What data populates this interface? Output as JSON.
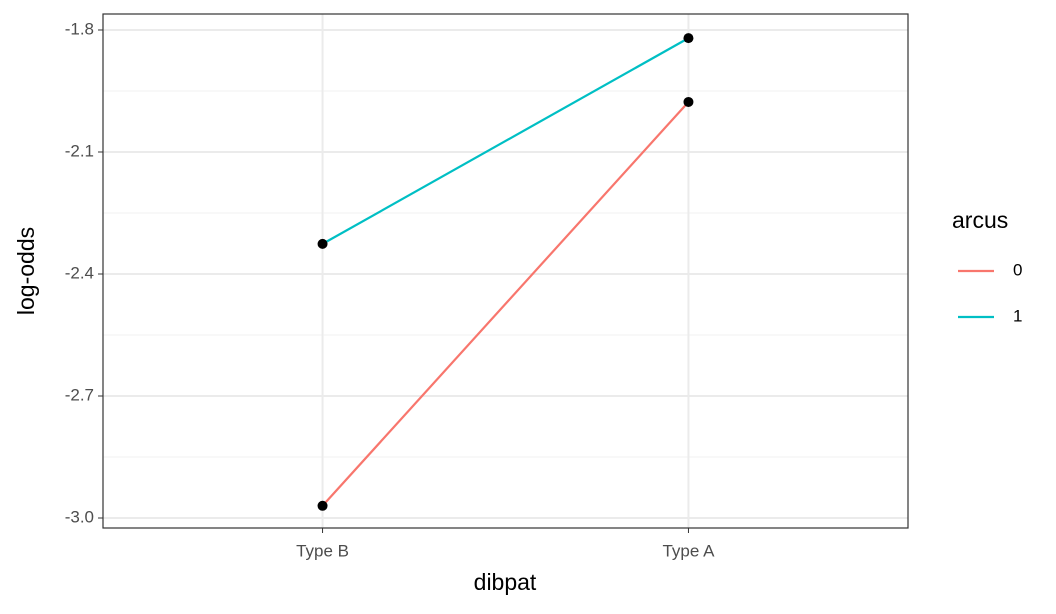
{
  "chart_data": {
    "type": "line",
    "x_label": "dibpat",
    "y_label": "log-odds",
    "categories": [
      "Type B",
      "Type A"
    ],
    "series": [
      {
        "name": "0",
        "color": "#F8766D",
        "values": [
          -2.97,
          -1.977
        ]
      },
      {
        "name": "1",
        "color": "#00BFC4",
        "values": [
          -2.326,
          -1.82
        ]
      }
    ],
    "legend_title": "arcus",
    "legend_position": "right",
    "ylim": [
      -3.0246,
      -1.7607
    ],
    "yticks": [
      {
        "value": -3.0,
        "label": "-3.0"
      },
      -2.7,
      -2.4,
      -2.1,
      -1.8
    ],
    "grid": true,
    "point_color": "#000000"
  }
}
